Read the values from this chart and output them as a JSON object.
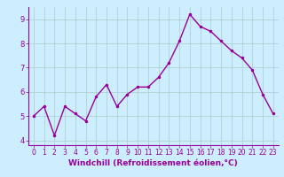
{
  "x": [
    0,
    1,
    2,
    3,
    4,
    5,
    6,
    7,
    8,
    9,
    10,
    11,
    12,
    13,
    14,
    15,
    16,
    17,
    18,
    19,
    20,
    21,
    22,
    23
  ],
  "y": [
    5.0,
    5.4,
    4.2,
    5.4,
    5.1,
    4.8,
    5.8,
    6.3,
    5.4,
    5.9,
    6.2,
    6.2,
    6.6,
    7.2,
    8.1,
    9.2,
    8.7,
    8.5,
    8.1,
    7.7,
    7.4,
    6.9,
    5.9,
    5.1
  ],
  "line_color": "#990099",
  "marker": ".",
  "marker_size": 3,
  "marker_color": "#990099",
  "background_color": "#cceeff",
  "grid_color": "#aacccc",
  "xlabel": "Windchill (Refroidissement éolien,°C)",
  "xlabel_color": "#990099",
  "tick_color": "#990099",
  "xlim": [
    -0.5,
    23.5
  ],
  "ylim": [
    3.8,
    9.5
  ],
  "yticks": [
    4,
    5,
    6,
    7,
    8,
    9
  ],
  "xticks": [
    0,
    1,
    2,
    3,
    4,
    5,
    6,
    7,
    8,
    9,
    10,
    11,
    12,
    13,
    14,
    15,
    16,
    17,
    18,
    19,
    20,
    21,
    22,
    23
  ],
  "spine_color": "#990099",
  "linewidth": 1.0,
  "tick_fontsize": 5.5,
  "xlabel_fontsize": 6.5
}
